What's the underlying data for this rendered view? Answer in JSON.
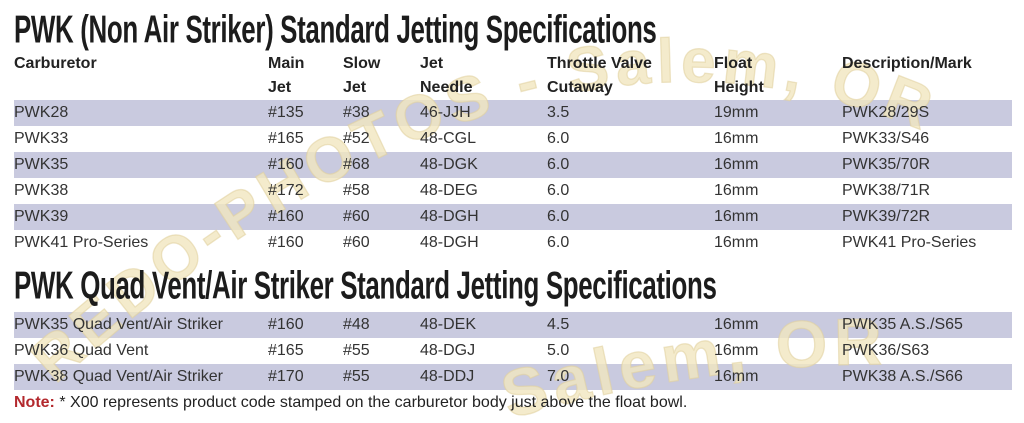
{
  "watermark": {
    "arc_text": "REDO-PHOTOS - Salem, OR",
    "bottom_text": "Salem, OR",
    "fill": "#f1e6bf",
    "stroke": "#e0cf9c"
  },
  "columns": [
    {
      "line1": "Carburetor",
      "line2": ""
    },
    {
      "line1": "Main",
      "line2": "Jet"
    },
    {
      "line1": "Slow",
      "line2": "Jet"
    },
    {
      "line1": "Jet",
      "line2": "Needle"
    },
    {
      "line1": "Throttle Valve",
      "line2": "Cutaway"
    },
    {
      "line1": "Float",
      "line2": "Height"
    },
    {
      "line1": "Description/Mark",
      "line2": ""
    }
  ],
  "table1": {
    "title": "PWK (Non Air Striker) Standard Jetting Specifications",
    "rows": [
      [
        "PWK28",
        "#135",
        "#38",
        "46-JJH",
        "3.5",
        "19mm",
        "PWK28/29S"
      ],
      [
        "PWK33",
        "#165",
        "#52",
        "48-CGL",
        "6.0",
        "16mm",
        "PWK33/S46"
      ],
      [
        "PWK35",
        "#160",
        "#68",
        "48-DGK",
        "6.0",
        "16mm",
        "PWK35/70R"
      ],
      [
        "PWK38",
        "#172",
        "#58",
        "48-DEG",
        "6.0",
        "16mm",
        "PWK38/71R"
      ],
      [
        "PWK39",
        "#160",
        "#60",
        "48-DGH",
        "6.0",
        "16mm",
        "PWK39/72R"
      ],
      [
        "PWK41 Pro-Series",
        "#160",
        "#60",
        "48-DGH",
        "6.0",
        "16mm",
        "PWK41 Pro-Series"
      ]
    ]
  },
  "table2": {
    "title": "PWK Quad Vent/Air Striker Standard Jetting Specifications",
    "rows": [
      [
        "PWK35 Quad Vent/Air Striker",
        "#160",
        "#48",
        "48-DEK",
        "4.5",
        "16mm",
        "PWK35 A.S./S65"
      ],
      [
        "PWK36 Quad Vent",
        "#165",
        "#55",
        "48-DGJ",
        "5.0",
        "16mm",
        "PWK36/S63"
      ],
      [
        "PWK38 Quad Vent/Air Striker",
        "#170",
        "#55",
        "48-DDJ",
        "7.0",
        "16mm",
        "PWK38 A.S./S66"
      ]
    ]
  },
  "note": {
    "label": "Note:",
    "text": "* X00 represents product code stamped on the carburetor body just above the float bowl."
  },
  "colors": {
    "row_shade": "#c9cadf",
    "note_label_red": "#b3282d",
    "text": "#2e2e2e"
  }
}
